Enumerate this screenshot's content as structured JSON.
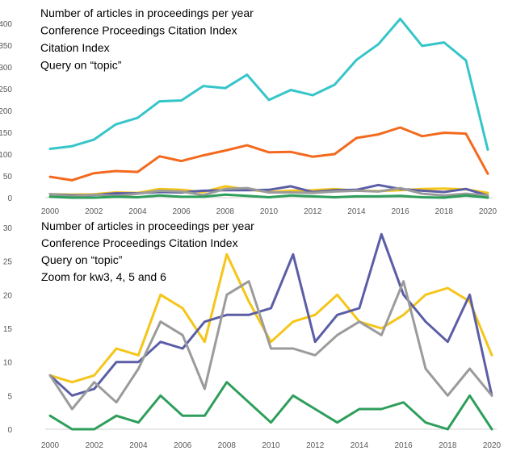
{
  "chart_data": [
    {
      "type": "line",
      "title_lines": [
        "Number of articles in proceedings per year",
        "Conference Proceedings Citation Index",
        "Citation Index",
        "Query on “topic”"
      ],
      "x": [
        2000,
        2001,
        2002,
        2003,
        2004,
        2005,
        2006,
        2007,
        2008,
        2009,
        2010,
        2011,
        2012,
        2013,
        2014,
        2015,
        2016,
        2017,
        2018,
        2019,
        2020
      ],
      "xticks": [
        "2000",
        "2002",
        "2004",
        "2006",
        "2008",
        "2010",
        "2012",
        "2014",
        "2016",
        "2018",
        "2020"
      ],
      "yticks": [
        "0",
        "50",
        "100",
        "150",
        "200",
        "250",
        "300",
        "350",
        "400"
      ],
      "ylim": [
        0,
        420
      ],
      "grid": false,
      "series": [
        {
          "color": "#36C5C9",
          "values": [
            112,
            118,
            133,
            168,
            183,
            221,
            223,
            256,
            251,
            282,
            224,
            247,
            235,
            259,
            316,
            352,
            410,
            348,
            356,
            315,
            110
          ]
        },
        {
          "color": "#F36A1E",
          "values": [
            48,
            40,
            56,
            61,
            59,
            95,
            84,
            97,
            108,
            120,
            104,
            105,
            94,
            100,
            137,
            145,
            161,
            141,
            149,
            147,
            55
          ]
        },
        {
          "color": "#F5C518",
          "values": [
            8,
            7,
            8,
            12,
            11,
            20,
            18,
            13,
            26,
            19,
            13,
            16,
            17,
            20,
            16,
            15,
            17,
            20,
            21,
            19,
            11
          ]
        },
        {
          "color": "#5B5EA6",
          "values": [
            8,
            5,
            6,
            10,
            10,
            13,
            12,
            16,
            17,
            17,
            18,
            26,
            13,
            17,
            18,
            29,
            20,
            16,
            13,
            20,
            5
          ]
        },
        {
          "color": "#9B9B9B",
          "values": [
            8,
            3,
            7,
            4,
            9,
            16,
            14,
            6,
            20,
            22,
            12,
            12,
            11,
            14,
            16,
            14,
            22,
            9,
            5,
            9,
            5
          ]
        },
        {
          "color": "#2E9E5B",
          "values": [
            2,
            0,
            0,
            2,
            1,
            5,
            2,
            2,
            7,
            4,
            1,
            5,
            3,
            1,
            3,
            3,
            4,
            1,
            0,
            5,
            0
          ]
        }
      ]
    },
    {
      "type": "line",
      "title_lines": [
        "Number of articles in proceedings per year",
        "Conference Proceedings Citation Index",
        "Query on “topic”",
        "Zoom for kw3, 4, 5 and 6"
      ],
      "x": [
        2000,
        2001,
        2002,
        2003,
        2004,
        2005,
        2006,
        2007,
        2008,
        2009,
        2010,
        2011,
        2012,
        2013,
        2014,
        2015,
        2016,
        2017,
        2018,
        2019,
        2020
      ],
      "xticks": [
        "2000",
        "2002",
        "2004",
        "2006",
        "2008",
        "2010",
        "2012",
        "2014",
        "2016",
        "2018",
        "2020"
      ],
      "yticks": [
        "0",
        "5",
        "10",
        "15",
        "20",
        "25",
        "30"
      ],
      "ylim": [
        0,
        30
      ],
      "grid": false,
      "series": [
        {
          "color": "#F5C518",
          "values": [
            8,
            7,
            8,
            12,
            11,
            20,
            18,
            13,
            26,
            19,
            13,
            16,
            17,
            20,
            16,
            15,
            17,
            20,
            21,
            19,
            11
          ]
        },
        {
          "color": "#5B5EA6",
          "values": [
            8,
            5,
            6,
            10,
            10,
            13,
            12,
            16,
            17,
            17,
            18,
            26,
            13,
            17,
            18,
            29,
            20,
            16,
            13,
            20,
            5
          ]
        },
        {
          "color": "#9B9B9B",
          "values": [
            8,
            3,
            7,
            4,
            9,
            16,
            14,
            6,
            20,
            22,
            12,
            12,
            11,
            14,
            16,
            14,
            22,
            9,
            5,
            9,
            5
          ]
        },
        {
          "color": "#2E9E5B",
          "values": [
            2,
            0,
            0,
            2,
            1,
            5,
            2,
            2,
            7,
            4,
            1,
            5,
            3,
            1,
            3,
            3,
            4,
            1,
            0,
            5,
            0
          ]
        }
      ]
    }
  ]
}
